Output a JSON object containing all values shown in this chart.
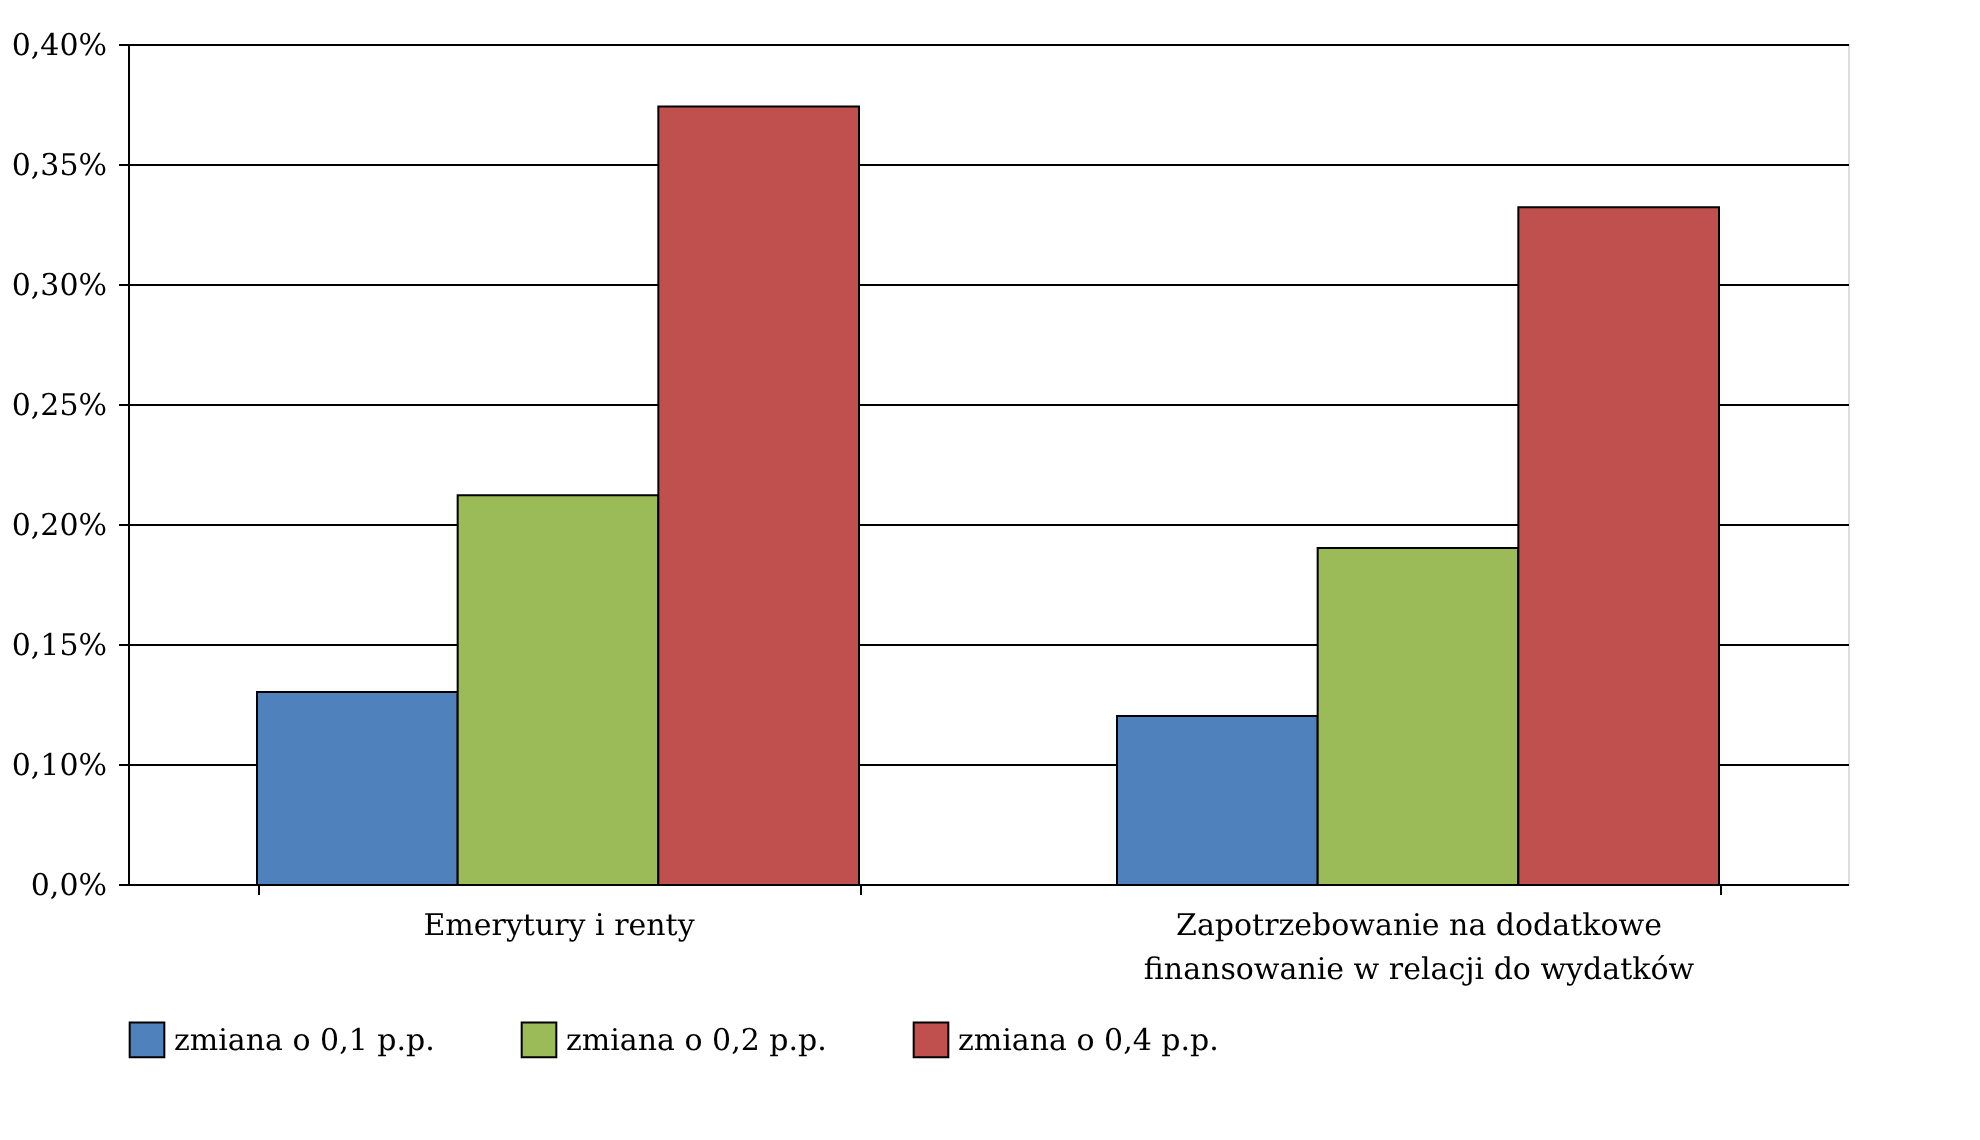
{
  "chart_data": {
    "type": "bar",
    "categories": [
      "Emerytury i renty",
      "Zapotrzebowanie na dodatkowe finansowanie w relacji do wydatków"
    ],
    "series": [
      {
        "name": "zmiana o 0,1 p.p.",
        "color": "#4f81bd",
        "values": [
          0.13,
          0.12
        ]
      },
      {
        "name": "zmiana o 0,2 p.p.",
        "color": "#9bbb59",
        "values": [
          0.212,
          0.19
        ]
      },
      {
        "name": "zmiana o 0,4 p.p.",
        "color": "#c0504d",
        "values": [
          0.374,
          0.332
        ]
      }
    ],
    "ylim": [
      0.05,
      0.4
    ],
    "yticks": [
      {
        "value": 0.05,
        "label": "0,0%"
      },
      {
        "value": 0.1,
        "label": "0,10%"
      },
      {
        "value": 0.15,
        "label": "0,15%"
      },
      {
        "value": 0.2,
        "label": "0,20%"
      },
      {
        "value": 0.25,
        "label": "0,25%"
      },
      {
        "value": 0.3,
        "label": "0,30%"
      },
      {
        "value": 0.35,
        "label": "0,35%"
      },
      {
        "value": 0.4,
        "label": "0,40%"
      }
    ],
    "grid": "y",
    "legend": "bottom"
  }
}
